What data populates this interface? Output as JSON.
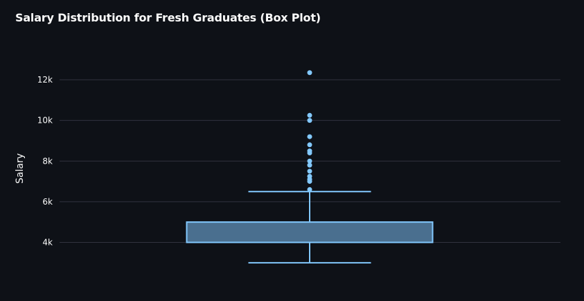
{
  "chart_data": {
    "type": "box",
    "title": "Salary Distribution for Fresh Graduates (Box Plot)",
    "xlabel": "",
    "ylabel": "Salary",
    "ylim": [
      2700,
      12700
    ],
    "yticks": [
      4000,
      6000,
      8000,
      10000,
      12000
    ],
    "ytick_labels": [
      "4k",
      "6k",
      "8k",
      "10k",
      "12k"
    ],
    "grid": true,
    "box": {
      "min": 3000,
      "q1": 4000,
      "median": 4000,
      "q3": 5000,
      "max": 6500
    },
    "outliers": [
      6600,
      7000,
      7100,
      7250,
      7500,
      7800,
      8000,
      8400,
      8500,
      8800,
      9200,
      10000,
      10250,
      12350
    ]
  },
  "colors": {
    "background": "#0e1117",
    "box_fill": "#4a6f8f",
    "box_stroke": "#83c9ff",
    "grid": "#31333f",
    "text": "#fafafa"
  }
}
